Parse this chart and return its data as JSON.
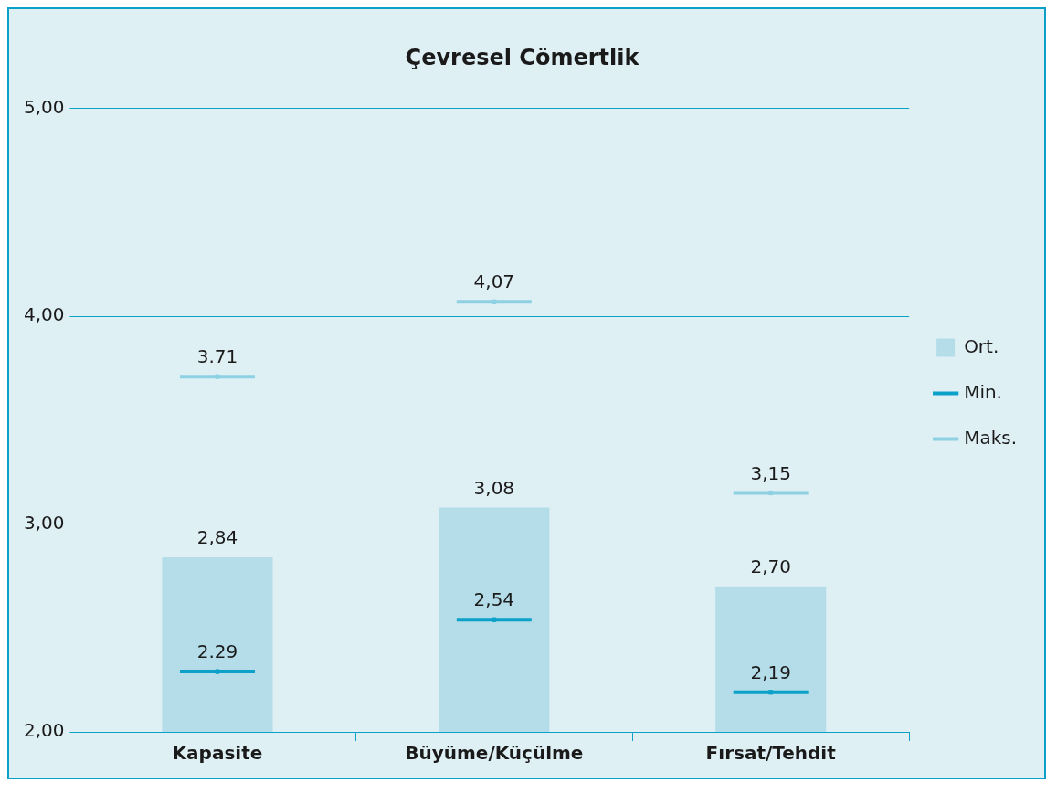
{
  "chart_data": {
    "type": "bar",
    "title": "Çevresel Cömertlik",
    "categories": [
      "Kapasite",
      "Büyüme/Küçülme",
      "Fırsat/Tehdit"
    ],
    "series": [
      {
        "name": "Ort.",
        "color": "#b5dde9",
        "values": [
          2.84,
          3.08,
          2.7
        ],
        "value_labels": [
          "2,84",
          "3,08",
          "2,70"
        ]
      },
      {
        "name": "Min.",
        "type": "scatter",
        "color": "#0ba1c9",
        "values": [
          2.29,
          2.54,
          2.19
        ],
        "value_labels": [
          "2.29",
          "2,54",
          "2,19"
        ]
      },
      {
        "name": "Maks.",
        "type": "scatter",
        "color": "#8ed1e2",
        "values": [
          3.71,
          4.07,
          3.15
        ],
        "value_labels": [
          "3.71",
          "4,07",
          "3,15"
        ]
      }
    ],
    "ylim": [
      2,
      5
    ],
    "yticks": [
      {
        "value": 2,
        "label": "2,00"
      },
      {
        "value": 3,
        "label": "3,00"
      },
      {
        "value": 4,
        "label": "4,00"
      },
      {
        "value": 5,
        "label": "5,00"
      }
    ],
    "grid": "y",
    "legend": "right"
  }
}
